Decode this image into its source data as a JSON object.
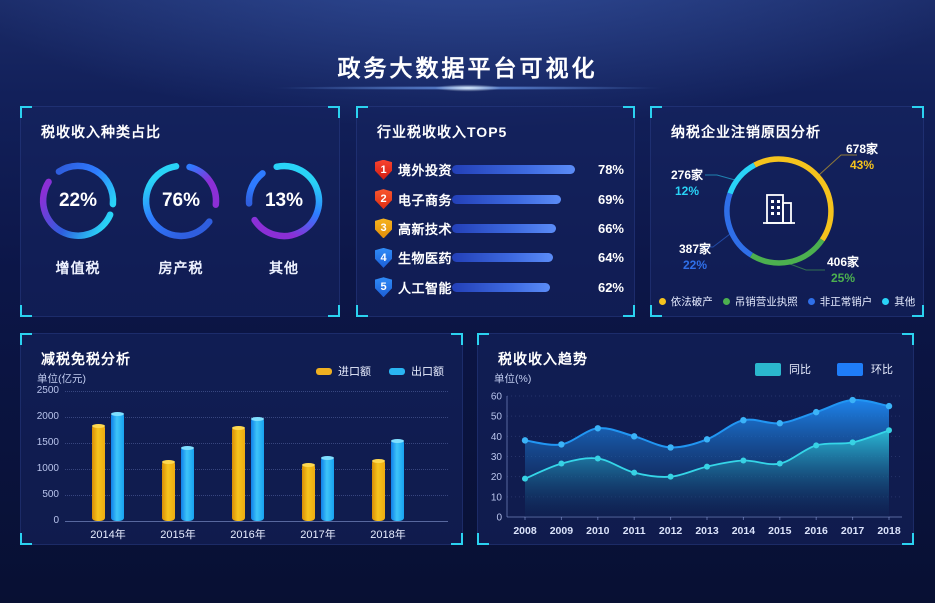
{
  "header": {
    "title": "政务大数据平台可视化"
  },
  "palette": {
    "accent": "#2bd2f0",
    "cyan": "#29d3f7",
    "blue": "#2e7bff",
    "deepBlue": "#2f5ede",
    "purple": "#8b2fd6",
    "yellow": "#f5c31d",
    "green": "#4cb04f",
    "donutBlue": "#2f6fe8",
    "seriesTeal": "#2bb7cd",
    "seriesBlue": "#1f7df8",
    "barYellow": "#efb021",
    "barBlue": "#2ab5f2"
  },
  "panels": {
    "taxTypes": {
      "title": "税收收入种类占比",
      "rings": [
        {
          "pct_label": "22%",
          "label": "增值税",
          "value": 22
        },
        {
          "pct_label": "76%",
          "label": "房产税",
          "value": 76
        },
        {
          "pct_label": "13%",
          "label": "其他",
          "value": 13
        }
      ]
    },
    "top5": {
      "title": "行业税收收入TOP5",
      "rows": [
        {
          "rank": "1",
          "label": "境外投资",
          "value": 78,
          "pct_label": "78%",
          "badge": [
            "#f8432f",
            "#d01c12"
          ]
        },
        {
          "rank": "2",
          "label": "电子商务",
          "value": 69,
          "pct_label": "69%",
          "badge": [
            "#f8572f",
            "#e02c12"
          ]
        },
        {
          "rank": "3",
          "label": "高新技术",
          "value": 66,
          "pct_label": "66%",
          "badge": [
            "#f8b41f",
            "#e08e0a"
          ]
        },
        {
          "rank": "4",
          "label": "生物医药",
          "value": 64,
          "pct_label": "64%",
          "badge": [
            "#2f8cf8",
            "#1d5fd6"
          ]
        },
        {
          "rank": "5",
          "label": "人工智能",
          "value": 62,
          "pct_label": "62%",
          "badge": [
            "#2f8cf8",
            "#1d5fd6"
          ]
        }
      ]
    },
    "cancel": {
      "title": "纳税企业注销原因分析",
      "slices": [
        {
          "label": "依法破产",
          "count": "678家",
          "pct_label": "43%",
          "value": 43,
          "color": "#f5c31d"
        },
        {
          "label": "吊销营业执照",
          "count": "406家",
          "pct_label": "25%",
          "value": 25,
          "color": "#4cb04f"
        },
        {
          "label": "非正常销户",
          "count": "387家",
          "pct_label": "22%",
          "value": 22,
          "color": "#2f6fe8"
        },
        {
          "label": "其他",
          "count": "276家",
          "pct_label": "12%",
          "value": 12,
          "color": "#29d3f7"
        }
      ]
    },
    "reduction": {
      "title": "减税免税分析",
      "unit": "单位(亿元)",
      "y_ticks": [
        "0",
        "500",
        "1000",
        "1500",
        "2000",
        "2500"
      ],
      "y_max": 2500,
      "categories": [
        "2014年",
        "2015年",
        "2016年",
        "2017年",
        "2018年"
      ],
      "series": [
        {
          "name": "进口额",
          "color": "#efb021",
          "values": [
            1850,
            1150,
            1800,
            1100,
            1170
          ]
        },
        {
          "name": "出口额",
          "color": "#2ab5f2",
          "values": [
            2080,
            1420,
            1980,
            1230,
            1560
          ]
        }
      ]
    },
    "trend": {
      "title": "税收收入趋势",
      "unit": "单位(%)",
      "y_ticks": [
        "0",
        "10",
        "20",
        "30",
        "40",
        "50",
        "60"
      ],
      "y_max": 60,
      "x": [
        "2008",
        "2009",
        "2010",
        "2011",
        "2012",
        "2013",
        "2014",
        "2015",
        "2016",
        "2017",
        "2018"
      ],
      "series": [
        {
          "name": "同比",
          "color": "#2bb7cd",
          "line": "#35d6e8",
          "values": [
            19,
            26.5,
            29,
            22,
            20,
            25,
            28,
            26.5,
            35.5,
            37,
            43
          ]
        },
        {
          "name": "环比",
          "color": "#1f7df8",
          "line": "#2196f3",
          "values": [
            38,
            36,
            44,
            40,
            34.5,
            38.5,
            48,
            46.5,
            52,
            58,
            55
          ]
        }
      ]
    }
  },
  "chart_data": [
    {
      "type": "pie",
      "variant": "donut-rings",
      "title": "税收收入种类占比",
      "categories": [
        "增值税",
        "房产税",
        "其他"
      ],
      "values": [
        22,
        76,
        13
      ],
      "unit": "%"
    },
    {
      "type": "bar",
      "orientation": "horizontal",
      "title": "行业税收收入TOP5",
      "categories": [
        "境外投资",
        "电子商务",
        "高新技术",
        "生物医药",
        "人工智能"
      ],
      "values": [
        78,
        69,
        66,
        64,
        62
      ],
      "unit": "%"
    },
    {
      "type": "pie",
      "variant": "donut",
      "title": "纳税企业注销原因分析",
      "categories": [
        "依法破产",
        "吊销营业执照",
        "非正常销户",
        "其他"
      ],
      "values": [
        43,
        25,
        22,
        12
      ],
      "counts": [
        "678家",
        "406家",
        "387家",
        "276家"
      ],
      "legend_position": "bottom"
    },
    {
      "type": "bar",
      "title": "减税免税分析",
      "ylabel": "单位(亿元)",
      "ylim": [
        0,
        2500
      ],
      "categories": [
        "2014年",
        "2015年",
        "2016年",
        "2017年",
        "2018年"
      ],
      "series": [
        {
          "name": "进口额",
          "values": [
            1850,
            1150,
            1800,
            1100,
            1170
          ]
        },
        {
          "name": "出口额",
          "values": [
            2080,
            1420,
            1980,
            1230,
            1560
          ]
        }
      ],
      "legend_position": "top-right",
      "grid": "dotted"
    },
    {
      "type": "area",
      "title": "税收收入趋势",
      "ylabel": "单位(%)",
      "ylim": [
        0,
        60
      ],
      "smooth": true,
      "x": [
        2008,
        2009,
        2010,
        2011,
        2012,
        2013,
        2014,
        2015,
        2016,
        2017,
        2018
      ],
      "series": [
        {
          "name": "同比",
          "values": [
            19,
            26.5,
            29,
            22,
            20,
            25,
            28,
            26.5,
            35.5,
            37,
            43
          ]
        },
        {
          "name": "环比",
          "values": [
            38,
            36,
            44,
            40,
            34.5,
            38.5,
            48,
            46.5,
            52,
            58,
            55
          ]
        }
      ],
      "legend_position": "top-right"
    }
  ]
}
